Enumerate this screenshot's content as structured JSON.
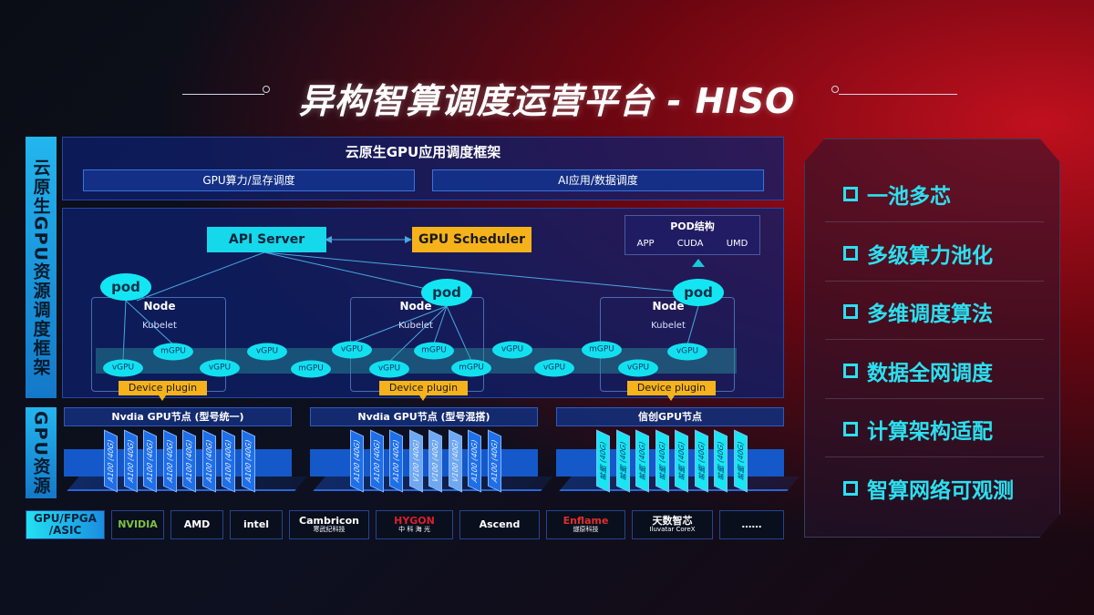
{
  "title": "异构智算调度运营平台 - HISO",
  "side_labels": [
    "云原生GPU资源调度框架",
    "GPU资源"
  ],
  "framework": {
    "title": "云原生GPU应用调度框架",
    "boxes": [
      "GPU算力/显存调度",
      "AI应用/数据调度"
    ]
  },
  "api_server": "API Server",
  "gpu_scheduler": "GPU Scheduler",
  "pod_structure": {
    "title": "POD结构",
    "items": [
      "APP",
      "CUDA",
      "UMD"
    ]
  },
  "pod_label": "pod",
  "node_label": "Node",
  "kubelet_label": "Kubelet",
  "device_plugin": "Device plugin",
  "gpu_units": [
    "vGPU",
    "mGPU",
    "vGPU",
    "vGPU",
    "mGPU",
    "vGPU",
    "vGPU",
    "mGPU",
    "mGPU",
    "vGPU",
    "vGPU",
    "mGPU",
    "vGPU",
    "vGPU"
  ],
  "gpu_groups": [
    {
      "title": "Nvdia GPU节点 (型号统一)",
      "chips": [
        "A100 (40G)",
        "A100 (40G)",
        "A100 (40G)",
        "A100 (40G)",
        "A100 (40G)",
        "A100 (40G)",
        "A100 (40G)",
        "A100 (40G)"
      ]
    },
    {
      "title": "Nvdia GPU节点 (型号混搭)",
      "chips": [
        "A100 (40G)",
        "A100 (40G)",
        "A100 (40G)",
        "V100 (40G)",
        "V100 (40G)",
        "V100 (40G)",
        "A100 (40G)",
        "A100 (40G)"
      ]
    },
    {
      "title": "信创GPU节点",
      "chips": [
        "昇腾 (40G)",
        "昇腾 (40G)",
        "昇腾 (40G)",
        "昇腾 (40G)",
        "昇腾 (40G)",
        "昇腾 (40G)",
        "昇腾 (40G)",
        "昇腾 (40G)"
      ]
    }
  ],
  "chip_colors": {
    "a100": "#1f6fe8",
    "v100": "#6fa8f0",
    "xinchuang": "#18e6f0"
  },
  "vendor_label": "GPU/FPGA /ASIC",
  "vendors": [
    {
      "name": "NVIDIA",
      "sub": "",
      "color": "#7ec242"
    },
    {
      "name": "AMD",
      "sub": "",
      "color": "#ffffff"
    },
    {
      "name": "intel",
      "sub": "",
      "color": "#ffffff"
    },
    {
      "name": "Cambricon",
      "sub": "寒武纪科技",
      "color": "#ffffff"
    },
    {
      "name": "HYGON",
      "sub": "中 科 海 光",
      "color": "#d8202a"
    },
    {
      "name": "Ascend",
      "sub": "",
      "color": "#ffffff"
    },
    {
      "name": "Enflame",
      "sub": "燧原科技",
      "color": "#e0302a"
    },
    {
      "name": "天数智芯",
      "sub": "Iluvatar CoreX",
      "color": "#ffffff"
    },
    {
      "name": "……",
      "sub": "",
      "color": "#ffffff"
    }
  ],
  "features": [
    "一池多芯",
    "多级算力池化",
    "多维调度算法",
    "数据全网调度",
    "计算架构适配",
    "智算网络可观测"
  ]
}
